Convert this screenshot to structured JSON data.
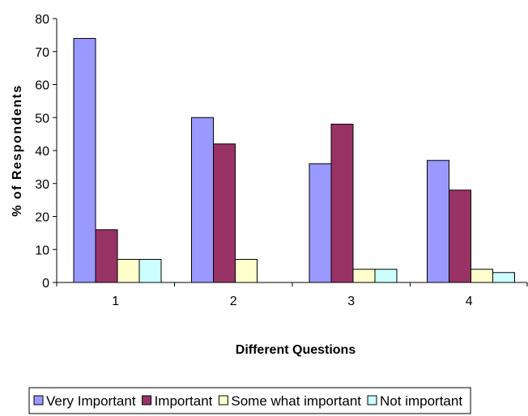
{
  "chart_data": {
    "type": "bar",
    "categories": [
      "1",
      "2",
      "3",
      "4"
    ],
    "series": [
      {
        "name": "Very Important",
        "color": "#9999ff",
        "values": [
          74,
          50,
          36,
          37
        ]
      },
      {
        "name": "Important",
        "color": "#993366",
        "values": [
          16,
          42,
          48,
          28
        ]
      },
      {
        "name": "Some what important",
        "color": "#ffffcc",
        "values": [
          7,
          7,
          4,
          4
        ]
      },
      {
        "name": "Not important",
        "color": "#ccffff",
        "values": [
          7,
          null,
          4,
          3
        ]
      }
    ],
    "xlabel": "Different Questions",
    "ylabel": "% of Respondents",
    "ylim": [
      0,
      80
    ],
    "yticks": [
      0,
      10,
      20,
      30,
      40,
      50,
      60,
      70,
      80
    ],
    "grid": false,
    "legend_position": "bottom"
  }
}
